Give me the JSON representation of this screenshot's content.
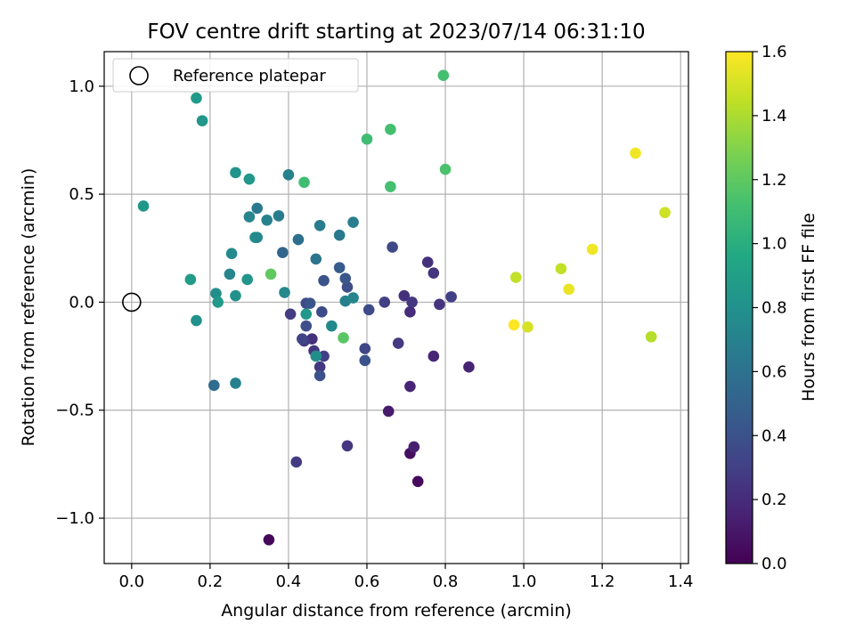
{
  "chart_data": {
    "type": "scatter",
    "title": "FOV centre drift starting at 2023/07/14 06:31:10",
    "xlabel": "Angular distance from reference (arcmin)",
    "ylabel": "Rotation from reference (arcmin)",
    "xlim": [
      -0.07,
      1.42
    ],
    "ylim": [
      -1.21,
      1.16
    ],
    "xticks": [
      0.0,
      0.2,
      0.4,
      0.6,
      0.8,
      1.0,
      1.2,
      1.4
    ],
    "xtick_labels": [
      "0.0",
      "0.2",
      "0.4",
      "0.6",
      "0.8",
      "1.0",
      "1.2",
      "1.4"
    ],
    "yticks": [
      -1.0,
      -0.5,
      0.0,
      0.5,
      1.0
    ],
    "ytick_labels": [
      "−1.0",
      "−0.5",
      "0.0",
      "0.5",
      "1.0"
    ],
    "grid": true,
    "legend": {
      "placement": "upper-left",
      "entries": [
        "Reference platepar"
      ]
    },
    "reference_point": {
      "x": 0.0,
      "y": 0.0
    },
    "colorbar": {
      "label": "Hours from first FF file",
      "cmap": "viridis",
      "range": [
        0.0,
        1.6
      ],
      "ticks": [
        0.0,
        0.2,
        0.4,
        0.6,
        0.8,
        1.0,
        1.2,
        1.4,
        1.6
      ],
      "tick_labels": [
        "0.0",
        "0.2",
        "0.4",
        "0.6",
        "0.8",
        "1.0",
        "1.2",
        "1.4",
        "1.6"
      ]
    },
    "points": [
      {
        "x": 0.35,
        "y": -1.1,
        "c": 0.03
      },
      {
        "x": 0.73,
        "y": -0.83,
        "c": 0.04
      },
      {
        "x": 0.71,
        "y": -0.7,
        "c": 0.06
      },
      {
        "x": 0.72,
        "y": -0.67,
        "c": 0.14
      },
      {
        "x": 0.655,
        "y": -0.505,
        "c": 0.12
      },
      {
        "x": 0.71,
        "y": -0.39,
        "c": 0.16
      },
      {
        "x": 0.86,
        "y": -0.3,
        "c": 0.16
      },
      {
        "x": 0.77,
        "y": -0.25,
        "c": 0.17
      },
      {
        "x": 0.55,
        "y": -0.665,
        "c": 0.25
      },
      {
        "x": 0.42,
        "y": -0.74,
        "c": 0.28
      },
      {
        "x": 0.68,
        "y": -0.19,
        "c": 0.27
      },
      {
        "x": 0.71,
        "y": -0.045,
        "c": 0.2
      },
      {
        "x": 0.695,
        "y": 0.03,
        "c": 0.22
      },
      {
        "x": 0.715,
        "y": 0.0,
        "c": 0.26
      },
      {
        "x": 0.645,
        "y": 0.0,
        "c": 0.3
      },
      {
        "x": 0.605,
        "y": -0.035,
        "c": 0.36
      },
      {
        "x": 0.595,
        "y": -0.215,
        "c": 0.34
      },
      {
        "x": 0.595,
        "y": -0.27,
        "c": 0.4
      },
      {
        "x": 0.785,
        "y": -0.01,
        "c": 0.24
      },
      {
        "x": 0.815,
        "y": 0.025,
        "c": 0.3
      },
      {
        "x": 0.77,
        "y": 0.135,
        "c": 0.24
      },
      {
        "x": 0.755,
        "y": 0.185,
        "c": 0.22
      },
      {
        "x": 0.665,
        "y": 0.255,
        "c": 0.35
      },
      {
        "x": 0.46,
        "y": -0.17,
        "c": 0.22
      },
      {
        "x": 0.44,
        "y": -0.18,
        "c": 0.28
      },
      {
        "x": 0.435,
        "y": -0.17,
        "c": 0.32
      },
      {
        "x": 0.465,
        "y": -0.225,
        "c": 0.25
      },
      {
        "x": 0.48,
        "y": -0.3,
        "c": 0.26
      },
      {
        "x": 0.49,
        "y": -0.25,
        "c": 0.3
      },
      {
        "x": 0.48,
        "y": -0.34,
        "c": 0.4
      },
      {
        "x": 0.445,
        "y": -0.11,
        "c": 0.38
      },
      {
        "x": 0.405,
        "y": -0.055,
        "c": 0.28
      },
      {
        "x": 0.445,
        "y": -0.005,
        "c": 0.36
      },
      {
        "x": 0.455,
        "y": -0.005,
        "c": 0.42
      },
      {
        "x": 0.485,
        "y": -0.045,
        "c": 0.37
      },
      {
        "x": 0.49,
        "y": 0.1,
        "c": 0.4
      },
      {
        "x": 0.55,
        "y": 0.07,
        "c": 0.38
      },
      {
        "x": 0.545,
        "y": 0.11,
        "c": 0.43
      },
      {
        "x": 0.53,
        "y": 0.16,
        "c": 0.46
      },
      {
        "x": 0.545,
        "y": 0.005,
        "c": 0.7
      },
      {
        "x": 0.565,
        "y": 0.02,
        "c": 0.72
      },
      {
        "x": 0.51,
        "y": -0.11,
        "c": 0.75
      },
      {
        "x": 0.445,
        "y": -0.055,
        "c": 0.85
      },
      {
        "x": 0.47,
        "y": -0.25,
        "c": 0.78
      },
      {
        "x": 0.385,
        "y": 0.23,
        "c": 0.52
      },
      {
        "x": 0.425,
        "y": 0.29,
        "c": 0.58
      },
      {
        "x": 0.47,
        "y": 0.2,
        "c": 0.62
      },
      {
        "x": 0.48,
        "y": 0.355,
        "c": 0.66
      },
      {
        "x": 0.53,
        "y": 0.31,
        "c": 0.64
      },
      {
        "x": 0.565,
        "y": 0.37,
        "c": 0.68
      },
      {
        "x": 0.39,
        "y": 0.045,
        "c": 0.74
      },
      {
        "x": 0.375,
        "y": 0.4,
        "c": 0.66
      },
      {
        "x": 0.345,
        "y": 0.38,
        "c": 0.7
      },
      {
        "x": 0.32,
        "y": 0.435,
        "c": 0.64
      },
      {
        "x": 0.3,
        "y": 0.395,
        "c": 0.72
      },
      {
        "x": 0.315,
        "y": 0.3,
        "c": 0.78
      },
      {
        "x": 0.32,
        "y": 0.3,
        "c": 0.74
      },
      {
        "x": 0.295,
        "y": 0.105,
        "c": 0.82
      },
      {
        "x": 0.265,
        "y": 0.03,
        "c": 0.8
      },
      {
        "x": 0.25,
        "y": 0.13,
        "c": 0.72
      },
      {
        "x": 0.255,
        "y": 0.225,
        "c": 0.76
      },
      {
        "x": 0.215,
        "y": 0.04,
        "c": 0.78
      },
      {
        "x": 0.22,
        "y": 0.0,
        "c": 0.86
      },
      {
        "x": 0.15,
        "y": 0.105,
        "c": 0.88
      },
      {
        "x": 0.165,
        "y": -0.085,
        "c": 0.8
      },
      {
        "x": 0.21,
        "y": -0.385,
        "c": 0.56
      },
      {
        "x": 0.265,
        "y": -0.375,
        "c": 0.7
      },
      {
        "x": 0.03,
        "y": 0.445,
        "c": 0.84
      },
      {
        "x": 0.265,
        "y": 0.6,
        "c": 0.82
      },
      {
        "x": 0.3,
        "y": 0.57,
        "c": 0.85
      },
      {
        "x": 0.4,
        "y": 0.59,
        "c": 0.7
      },
      {
        "x": 0.165,
        "y": 0.945,
        "c": 0.86
      },
      {
        "x": 0.18,
        "y": 0.84,
        "c": 0.84
      },
      {
        "x": 0.44,
        "y": 0.555,
        "c": 1.1
      },
      {
        "x": 0.355,
        "y": 0.13,
        "c": 1.2
      },
      {
        "x": 0.54,
        "y": -0.165,
        "c": 1.18
      },
      {
        "x": 0.6,
        "y": 0.755,
        "c": 1.1
      },
      {
        "x": 0.66,
        "y": 0.8,
        "c": 1.12
      },
      {
        "x": 0.66,
        "y": 0.535,
        "c": 1.12
      },
      {
        "x": 0.8,
        "y": 0.615,
        "c": 1.14
      },
      {
        "x": 0.795,
        "y": 1.05,
        "c": 1.12
      },
      {
        "x": 0.98,
        "y": 0.115,
        "c": 1.45
      },
      {
        "x": 0.975,
        "y": -0.105,
        "c": 1.6
      },
      {
        "x": 1.01,
        "y": -0.115,
        "c": 1.5
      },
      {
        "x": 1.095,
        "y": 0.155,
        "c": 1.45
      },
      {
        "x": 1.115,
        "y": 0.06,
        "c": 1.55
      },
      {
        "x": 1.175,
        "y": 0.245,
        "c": 1.57
      },
      {
        "x": 1.285,
        "y": 0.69,
        "c": 1.57
      },
      {
        "x": 1.325,
        "y": -0.16,
        "c": 1.42
      },
      {
        "x": 1.36,
        "y": 0.415,
        "c": 1.48
      }
    ]
  }
}
